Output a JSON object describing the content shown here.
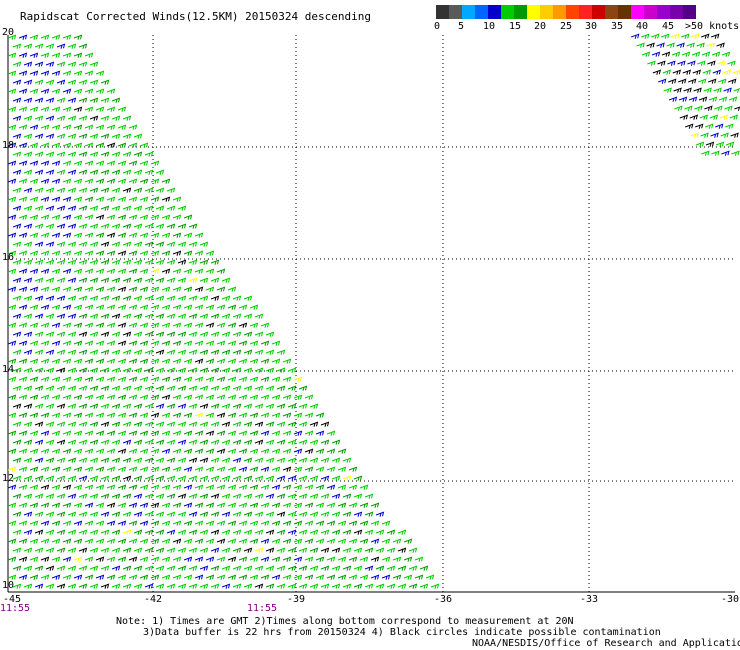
{
  "title": "Rapidscat Corrected Winds(12.5KM) 20150324 descending",
  "colorbar": {
    "colors": [
      "#333333",
      "#5a5a5a",
      "#00a8ff",
      "#0066ff",
      "#0000cc",
      "#00cc00",
      "#009900",
      "#ffff00",
      "#ffcc00",
      "#ff9900",
      "#ff4400",
      "#ff2222",
      "#cc0000",
      "#8b4513",
      "#663300",
      "#ff00ff",
      "#cc00cc",
      "#9900cc",
      "#7700aa",
      "#550088"
    ],
    "labels": [
      "0",
      "5",
      "10",
      "15",
      "20",
      "25",
      "30",
      "35",
      "40",
      "45",
      ">50 knots"
    ]
  },
  "map": {
    "lat_labels": [
      "20",
      "18",
      "16",
      "14",
      "12",
      "10"
    ],
    "lon_labels": [
      "-45",
      "-42",
      "-39",
      "-36",
      "-33",
      "-30"
    ],
    "time_labels": [
      "11:55",
      "11:55"
    ]
  },
  "notes": {
    "line1": "Note: 1) Times are GMT 2)Times along bottom correspond to measurement at 20N",
    "line2": "3)Data buffer is 22 hrs from 20150324 4) Black circles indicate possible contamination",
    "line3": "NOAA/NESDIS/Office of Research and Applications"
  }
}
